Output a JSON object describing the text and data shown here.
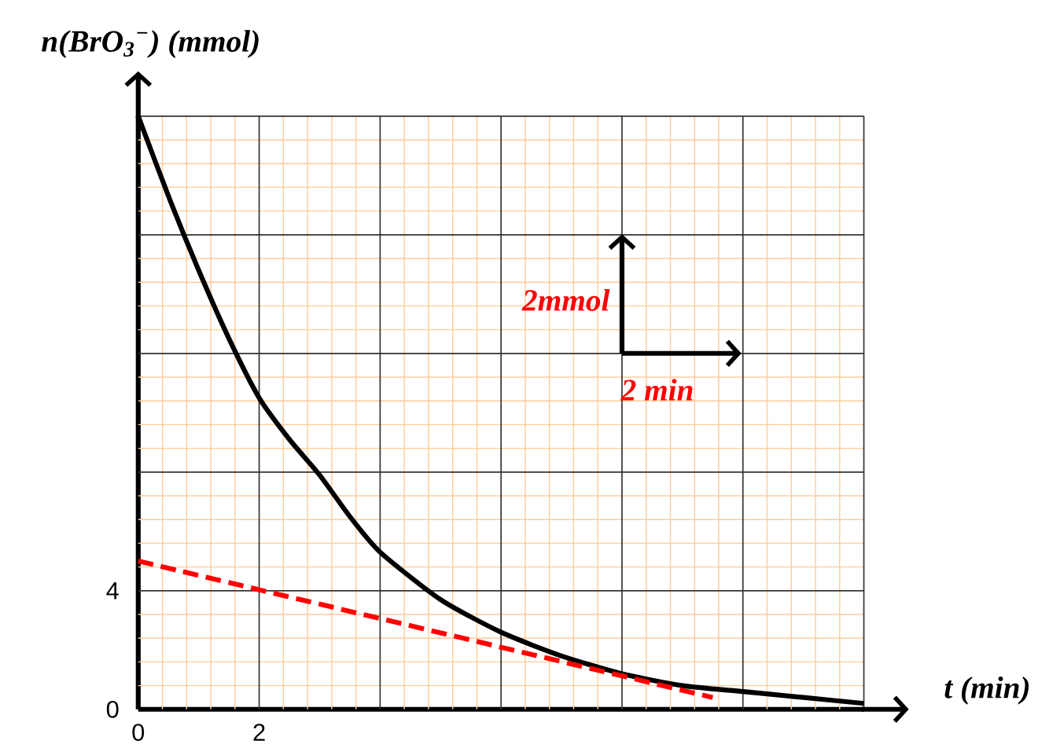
{
  "chart_data": {
    "type": "line",
    "xlabel": "t (min)",
    "ylabel": "n(BrO$_{3}$$^{−}$) (mmol)",
    "xlim": [
      0,
      12
    ],
    "ylim": [
      0,
      20
    ],
    "xticks": [
      0,
      {
        "value": 0.4,
        "label": null
      },
      {
        "value": 0.8,
        "label": null
      },
      {
        "value": 1.2,
        "label": null
      },
      {
        "value": 1.6,
        "label": null
      },
      2,
      {
        "value": 2.4,
        "label": null
      },
      {
        "value": 2.8,
        "label": null
      },
      {
        "value": 3.2,
        "label": null
      },
      {
        "value": 3.6,
        "label": null
      },
      {
        "value": 4,
        "label": null
      },
      {
        "value": 4.4,
        "label": null
      },
      {
        "value": 4.8,
        "label": null
      },
      {
        "value": 5.2,
        "label": null
      },
      {
        "value": 5.6,
        "label": null
      },
      {
        "value": 6,
        "label": null
      },
      {
        "value": 6.4,
        "label": null
      },
      {
        "value": 6.8,
        "label": null
      },
      {
        "value": 7.2,
        "label": null
      },
      {
        "value": 7.6,
        "label": null
      },
      {
        "value": 8,
        "label": null
      },
      {
        "value": 8.4,
        "label": null
      },
      {
        "value": 8.8,
        "label": null
      },
      {
        "value": 9.2,
        "label": null
      },
      {
        "value": 9.6,
        "label": null
      },
      {
        "value": 10,
        "label": null
      },
      {
        "value": 10.4,
        "label": null
      },
      {
        "value": 10.8,
        "label": null
      },
      {
        "value": 11.2,
        "label": null
      },
      {
        "value": 11.6,
        "label": null
      },
      {
        "value": 12,
        "label": null
      }
    ],
    "yticks": [
      0,
      {
        "value": 0.8,
        "label": null
      },
      {
        "value": 1.6,
        "label": null
      },
      {
        "value": 2.4,
        "label": null
      },
      {
        "value": 3.2,
        "label": null
      },
      4,
      {
        "value": 4.8,
        "label": null
      },
      {
        "value": 5.6,
        "label": null
      },
      {
        "value": 6.4,
        "label": null
      },
      {
        "value": 7.2,
        "label": null
      },
      {
        "value": 8,
        "label": null
      },
      {
        "value": 8.8,
        "label": null
      },
      {
        "value": 9.6,
        "label": null
      },
      {
        "value": 10.4,
        "label": null
      },
      {
        "value": 11.2,
        "label": null
      },
      {
        "value": 12,
        "label": null
      },
      {
        "value": 12.8,
        "label": null
      },
      {
        "value": 13.6,
        "label": null
      },
      {
        "value": 14.4,
        "label": null
      },
      {
        "value": 15.2,
        "label": null
      },
      {
        "value": 16,
        "label": null
      },
      {
        "value": 16.8,
        "label": null
      },
      {
        "value": 17.6,
        "label": null
      },
      {
        "value": 18.4,
        "label": null
      },
      {
        "value": 19.2,
        "label": null
      },
      {
        "value": 20,
        "label": null
      }
    ],
    "grid": true,
    "marker": "none",
    "series": [
      {
        "color": "#000000",
        "line_style": "solid",
        "x": [
          0,
          0.5,
          1,
          1.5,
          2,
          2.5,
          3,
          3.5,
          4,
          5,
          6,
          7,
          8,
          9,
          10,
          11,
          12
        ],
        "values": [
          20,
          17.3,
          14.8,
          12.5,
          10.5,
          9.1,
          7.9,
          6.5,
          5.3,
          3.7,
          2.6,
          1.8,
          1.2,
          0.8,
          0.6,
          0.4,
          0.2
        ]
      },
      {
        "color": "#ff0000",
        "line_style": "dashed",
        "x": [
          0,
          9.5
        ],
        "values": [
          5,
          0.4
        ]
      }
    ],
    "annotations": [
      "2mmol",
      "2 min"
    ]
  }
}
